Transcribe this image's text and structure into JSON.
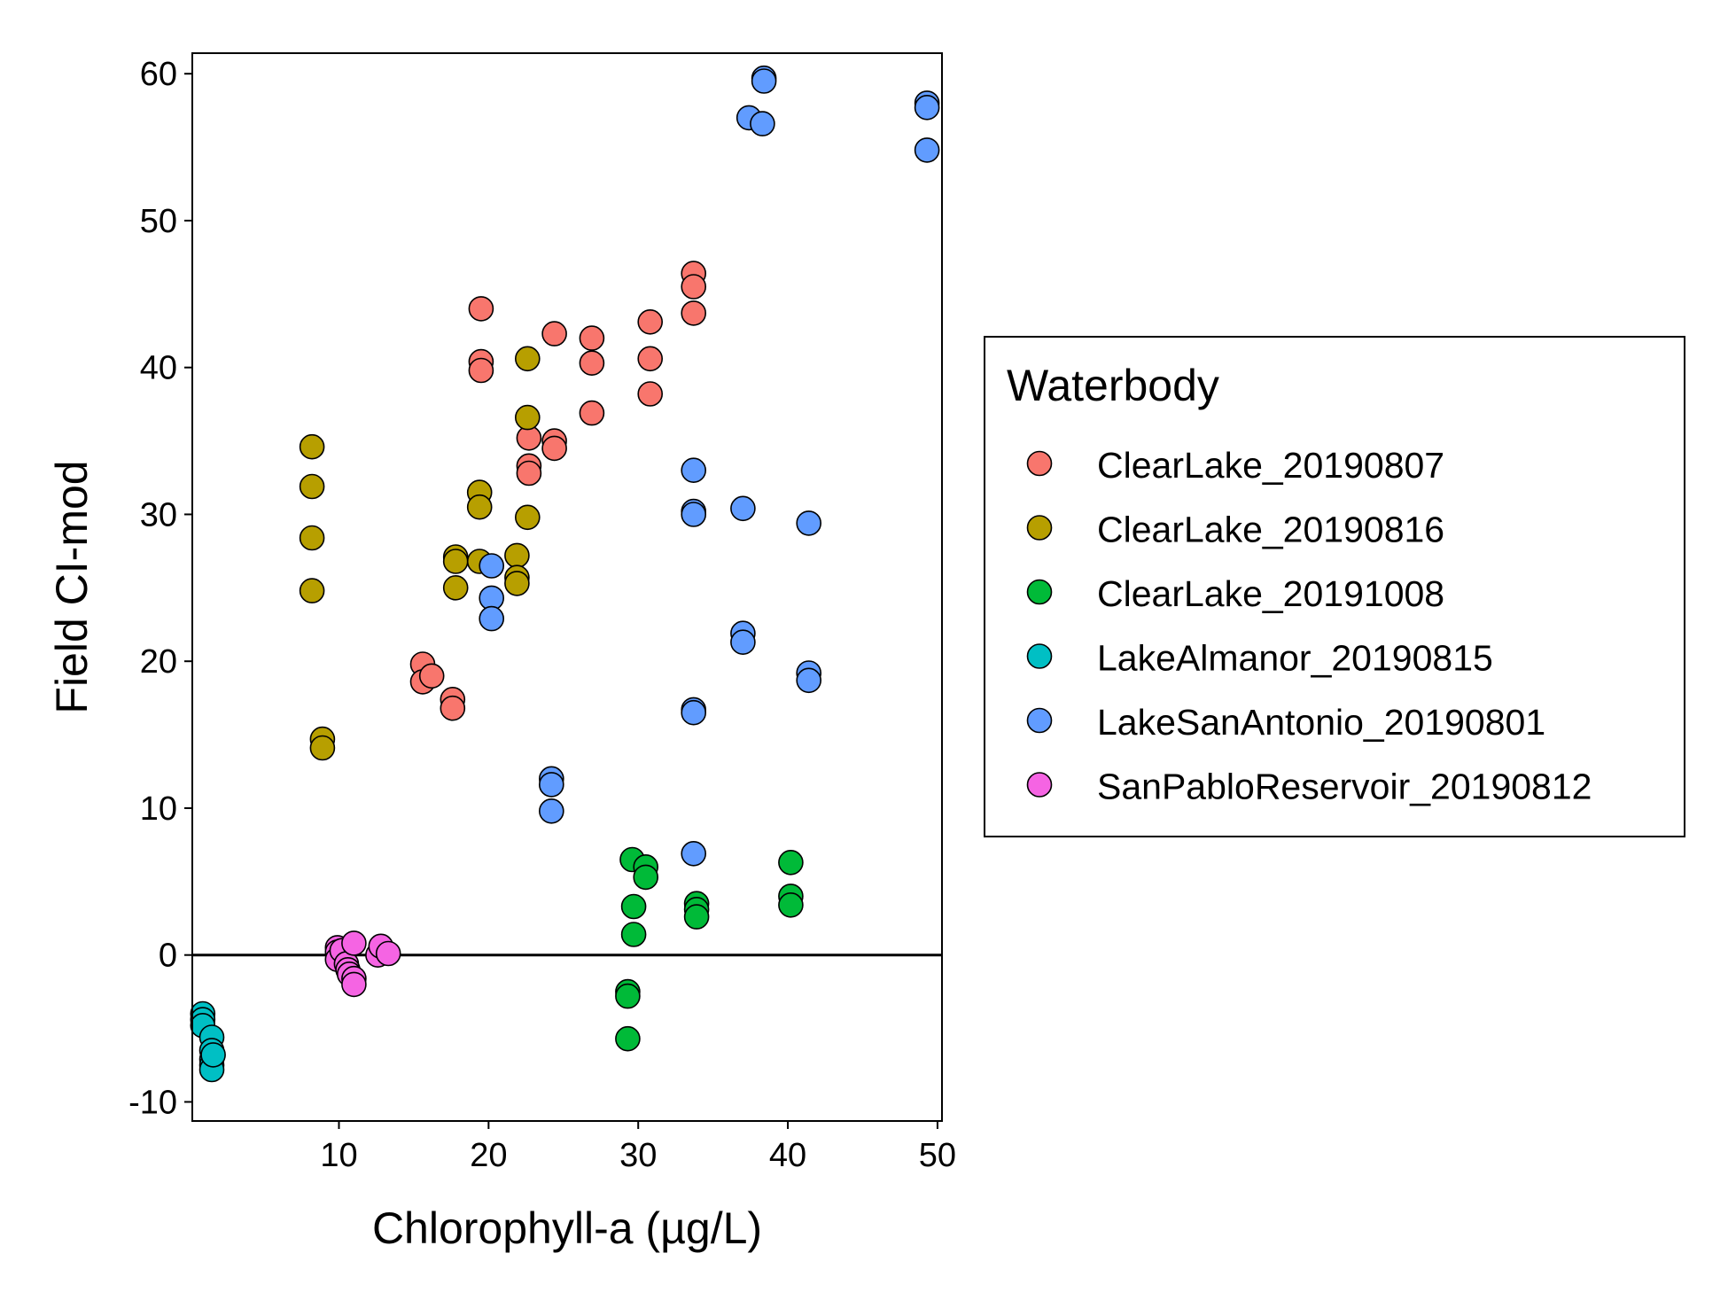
{
  "chart_data": {
    "type": "scatter",
    "xlabel": "Chlorophyll-a (µg/L)",
    "ylabel": "Field CI-mod",
    "xlim": [
      0.2,
      50.3
    ],
    "ylim": [
      -11.3,
      61.4
    ],
    "xticks": [
      10,
      20,
      30,
      40,
      50
    ],
    "yticks": [
      -10,
      0,
      10,
      20,
      30,
      40,
      50,
      60
    ],
    "reference_line_y": 0,
    "grid": false,
    "legend": {
      "title": "Waterbody",
      "placement": "right"
    },
    "series": [
      {
        "name": "ClearLake_20190807",
        "color": "#F8766D",
        "points": [
          [
            19.5,
            44.0
          ],
          [
            19.5,
            40.4
          ],
          [
            19.5,
            39.8
          ],
          [
            24.4,
            42.3
          ],
          [
            24.4,
            35.0
          ],
          [
            24.4,
            34.5
          ],
          [
            22.7,
            35.2
          ],
          [
            22.7,
            33.3
          ],
          [
            22.7,
            32.8
          ],
          [
            26.9,
            42.0
          ],
          [
            26.9,
            40.3
          ],
          [
            26.9,
            36.9
          ],
          [
            30.8,
            43.1
          ],
          [
            30.8,
            40.6
          ],
          [
            30.8,
            38.2
          ],
          [
            33.7,
            46.4
          ],
          [
            33.7,
            45.5
          ],
          [
            33.7,
            43.7
          ],
          [
            15.6,
            19.8
          ],
          [
            15.6,
            18.6
          ],
          [
            16.2,
            19.0
          ],
          [
            17.6,
            17.4
          ],
          [
            17.6,
            16.8
          ]
        ]
      },
      {
        "name": "ClearLake_20190816",
        "color": "#B79F00",
        "points": [
          [
            8.2,
            34.6
          ],
          [
            8.2,
            31.9
          ],
          [
            8.2,
            28.4
          ],
          [
            8.2,
            24.8
          ],
          [
            8.9,
            14.7
          ],
          [
            8.9,
            14.1
          ],
          [
            17.8,
            27.1
          ],
          [
            17.8,
            26.8
          ],
          [
            17.8,
            25.0
          ],
          [
            19.4,
            31.5
          ],
          [
            19.4,
            30.5
          ],
          [
            19.4,
            26.8
          ],
          [
            21.9,
            27.2
          ],
          [
            21.9,
            25.7
          ],
          [
            21.9,
            25.3
          ],
          [
            22.6,
            40.6
          ],
          [
            22.6,
            36.6
          ],
          [
            22.6,
            29.8
          ]
        ]
      },
      {
        "name": "ClearLake_20191008",
        "color": "#00BA38",
        "points": [
          [
            29.6,
            6.5
          ],
          [
            30.5,
            6.0
          ],
          [
            30.5,
            5.3
          ],
          [
            29.7,
            3.3
          ],
          [
            29.7,
            1.4
          ],
          [
            29.3,
            -2.5
          ],
          [
            29.3,
            -2.8
          ],
          [
            29.3,
            -5.7
          ],
          [
            33.9,
            3.5
          ],
          [
            33.9,
            3.1
          ],
          [
            33.9,
            2.6
          ],
          [
            40.2,
            6.3
          ],
          [
            40.2,
            4.0
          ],
          [
            40.2,
            3.4
          ]
        ]
      },
      {
        "name": "LakeAlmanor_20190815",
        "color": "#00BFC4",
        "points": [
          [
            0.9,
            -4.0
          ],
          [
            0.9,
            -4.4
          ],
          [
            0.9,
            -4.8
          ],
          [
            1.5,
            -5.6
          ],
          [
            1.5,
            -6.5
          ],
          [
            1.5,
            -7.1
          ],
          [
            1.5,
            -7.5
          ],
          [
            1.5,
            -7.8
          ],
          [
            1.6,
            -6.8
          ]
        ]
      },
      {
        "name": "LakeSanAntonio_20190801",
        "color": "#619CFF",
        "points": [
          [
            38.4,
            59.7
          ],
          [
            38.4,
            59.5
          ],
          [
            37.4,
            57.0
          ],
          [
            38.3,
            56.6
          ],
          [
            49.3,
            58.0
          ],
          [
            49.3,
            57.7
          ],
          [
            49.3,
            54.8
          ],
          [
            33.7,
            33.0
          ],
          [
            33.7,
            30.2
          ],
          [
            33.7,
            30.0
          ],
          [
            37.0,
            30.4
          ],
          [
            41.4,
            29.4
          ],
          [
            20.2,
            26.5
          ],
          [
            20.2,
            24.3
          ],
          [
            20.2,
            22.9
          ],
          [
            37.0,
            21.9
          ],
          [
            37.0,
            21.3
          ],
          [
            41.4,
            19.2
          ],
          [
            41.4,
            18.7
          ],
          [
            33.7,
            16.7
          ],
          [
            33.7,
            16.5
          ],
          [
            24.2,
            12.0
          ],
          [
            24.2,
            11.6
          ],
          [
            24.2,
            9.8
          ],
          [
            33.7,
            6.9
          ]
        ]
      },
      {
        "name": "SanPabloReservoir_20190812",
        "color": "#F564E3",
        "points": [
          [
            9.9,
            0.5
          ],
          [
            9.9,
            0.2
          ],
          [
            9.9,
            -0.3
          ],
          [
            10.2,
            0.3
          ],
          [
            10.5,
            -0.6
          ],
          [
            10.6,
            -1.0
          ],
          [
            10.7,
            -1.3
          ],
          [
            11.0,
            0.8
          ],
          [
            11.0,
            -1.6
          ],
          [
            11.0,
            -2.0
          ],
          [
            12.6,
            0.0
          ],
          [
            12.8,
            0.6
          ],
          [
            13.3,
            0.1
          ]
        ]
      }
    ]
  }
}
